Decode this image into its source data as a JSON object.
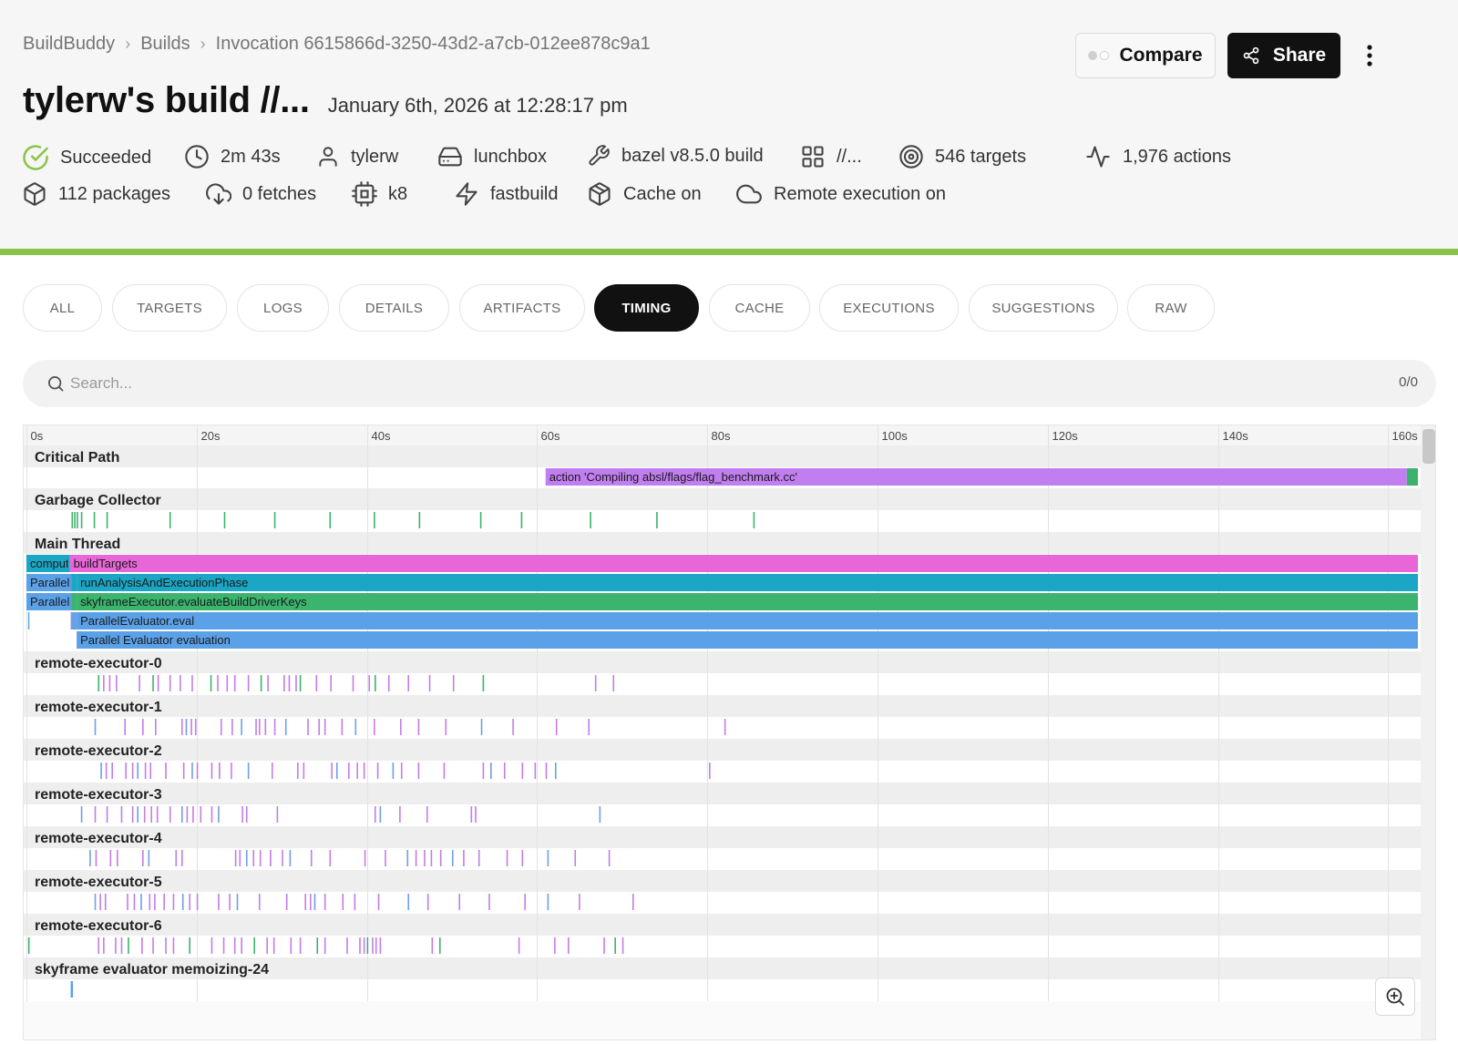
{
  "breadcrumb": [
    "BuildBuddy",
    "Builds",
    "Invocation 6615866d-3250-43d2-a7cb-012ee878c9a1"
  ],
  "title": "tylerw's build //...",
  "subtitle": "January 6th, 2026 at 12:28:17 pm",
  "actions": {
    "compare": "Compare",
    "share": "Share"
  },
  "stats": [
    {
      "icon": "check-circle-icon",
      "text": "Succeeded"
    },
    {
      "icon": "clock-icon",
      "text": "2m 43s"
    },
    {
      "icon": "user-icon",
      "text": "tylerw"
    },
    {
      "icon": "hard-drive-icon",
      "text": "lunchbox"
    },
    {
      "icon": "wrench-icon",
      "text": "bazel v8.5.0 build"
    },
    {
      "icon": "grid-icon",
      "text": "//..."
    },
    {
      "icon": "target-icon",
      "text": "546 targets"
    },
    {
      "icon": "activity-icon",
      "text": "1,976 actions"
    },
    {
      "icon": "box-icon",
      "text": "112 packages"
    },
    {
      "icon": "cloud-download-icon",
      "text": "0 fetches"
    },
    {
      "icon": "cpu-icon",
      "text": "k8"
    },
    {
      "icon": "zap-icon",
      "text": "fastbuild"
    },
    {
      "icon": "package-icon",
      "text": "Cache on"
    },
    {
      "icon": "cloud-icon",
      "text": "Remote execution on"
    }
  ],
  "tabs": [
    "ALL",
    "TARGETS",
    "LOGS",
    "DETAILS",
    "ARTIFACTS",
    "TIMING",
    "CACHE",
    "EXECUTIONS",
    "SUGGESTIONS",
    "RAW"
  ],
  "active_tab": "TIMING",
  "search": {
    "placeholder": "Search...",
    "count": "0/0"
  },
  "colors": {
    "success": "#8bc34a",
    "critical_path": "#c17ef0",
    "gc": "#3cb36c",
    "build_targets": "#e866d8",
    "analysis": "#1aa6c4",
    "evaluate_keys": "#3bb46e",
    "evaluator": "#5ba1e8",
    "executor_purple": "#c57be8",
    "executor_blue": "#6d9fe8",
    "executor_green": "#3cb36c"
  },
  "timeline": {
    "x_max_seconds": 163.5,
    "axis_ticks": [
      {
        "t": 0,
        "label": "0s"
      },
      {
        "t": 20,
        "label": "20s"
      },
      {
        "t": 40,
        "label": "40s"
      },
      {
        "t": 60,
        "label": "60s"
      },
      {
        "t": 80,
        "label": "80s"
      },
      {
        "t": 100,
        "label": "100s"
      },
      {
        "t": 120,
        "label": "120s"
      },
      {
        "t": 140,
        "label": "140s"
      },
      {
        "t": 160,
        "label": "160s"
      }
    ],
    "sections": [
      {
        "name": "Critical Path",
        "rows": [
          [
            {
              "start": 61.0,
              "end": 162.2,
              "label": "action 'Compiling absl/flags/flag_benchmark.cc'",
              "color": "critical_path"
            },
            {
              "start": 162.2,
              "end": 163.5,
              "label": "",
              "color": "gc"
            }
          ]
        ]
      },
      {
        "name": "Garbage Collector",
        "ticks": {
          "color": "gc",
          "times": [
            5.3,
            5.6,
            5.9,
            6.4,
            7.9,
            9.4,
            16.8,
            23.2,
            29.1,
            35.6,
            40.8,
            46.1,
            53.3,
            58.1,
            66.2,
            74.0,
            85.4
          ]
        }
      },
      {
        "name": "Main Thread",
        "rows": [
          [
            {
              "start": 0,
              "end": 5.1,
              "label": "compute",
              "color": "analysis"
            },
            {
              "start": 5.1,
              "end": 163.5,
              "label": "buildTargets",
              "color": "build_targets"
            }
          ],
          [
            {
              "start": 0,
              "end": 5.3,
              "label": "ParallelEvaluator",
              "color": "evaluator"
            },
            {
              "start": 5.3,
              "end": 5.9,
              "label": "",
              "color": "analysis"
            },
            {
              "start": 5.9,
              "end": 163.5,
              "label": "runAnalysisAndExecutionPhase",
              "color": "analysis"
            }
          ],
          [
            {
              "start": 0,
              "end": 5.3,
              "label": "ParallelEvaluator",
              "color": "evaluator"
            },
            {
              "start": 5.3,
              "end": 5.9,
              "label": "",
              "color": "evaluate_keys"
            },
            {
              "start": 5.9,
              "end": 163.5,
              "label": "skyframeExecutor.evaluateBuildDriverKeys",
              "color": "evaluate_keys"
            }
          ],
          [
            {
              "start": 0.2,
              "end": 0.35,
              "label": "",
              "color": "evaluator"
            },
            {
              "start": 5.2,
              "end": 5.9,
              "label": "",
              "color": "executor_blue"
            },
            {
              "start": 5.9,
              "end": 163.5,
              "label": "ParallelEvaluator.eval",
              "color": "evaluator"
            }
          ],
          [
            {
              "start": 5.9,
              "end": 163.5,
              "label": "Parallel Evaluator evaluation",
              "color": "evaluator"
            }
          ]
        ]
      },
      {
        "name": "remote-executor-0",
        "ticks": {
          "color": "executor_purple",
          "alt": "executor_green",
          "times": [
            8.4,
            9.0,
            9.7,
            10.5,
            13.2,
            14.8,
            15.4,
            16.8,
            18.0,
            19.4,
            21.6,
            22.4,
            23.5,
            24.4,
            26.0,
            27.5,
            28.3,
            30.2,
            30.8,
            31.6,
            32.1,
            34.0,
            35.7,
            38.3,
            40.2,
            40.9,
            42.5,
            44.8,
            47.3,
            50.1,
            53.6,
            66.8,
            68.9
          ]
        }
      },
      {
        "name": "remote-executor-1",
        "ticks": {
          "color": "executor_purple",
          "alt": "executor_blue",
          "times": [
            8.0,
            11.5,
            13.6,
            15.1,
            18.2,
            18.7,
            19.3,
            19.8,
            22.8,
            24.1,
            25.2,
            26.9,
            27.3,
            28.0,
            29.1,
            30.4,
            33.0,
            34.3,
            35.0,
            37.0,
            38.6,
            40.8,
            43.9,
            46.0,
            49.2,
            53.4,
            57.1,
            62.2,
            66.0,
            82.0
          ]
        }
      },
      {
        "name": "remote-executor-2",
        "ticks": {
          "color": "executor_purple",
          "alt": "executor_blue",
          "times": [
            8.7,
            9.3,
            10.0,
            11.6,
            12.4,
            13.0,
            13.9,
            14.5,
            16.3,
            18.4,
            19.4,
            20.0,
            21.7,
            22.6,
            24.0,
            26.0,
            28.8,
            31.8,
            32.5,
            35.8,
            36.4,
            37.8,
            38.8,
            39.6,
            41.2,
            43.0,
            44.0,
            46.0,
            49.0,
            53.6,
            54.5,
            56.1,
            58.2,
            59.7,
            61.0,
            62.1,
            80.2
          ]
        }
      },
      {
        "name": "remote-executor-3",
        "ticks": {
          "color": "executor_purple",
          "alt": "executor_blue",
          "times": [
            6.4,
            8.0,
            9.4,
            11.1,
            12.4,
            13.0,
            13.8,
            14.6,
            15.3,
            16.8,
            18.2,
            18.8,
            19.5,
            20.4,
            21.7,
            22.5,
            25.3,
            25.8,
            29.4,
            40.9,
            41.5,
            43.8,
            47.0,
            52.2,
            52.7,
            67.3
          ]
        }
      },
      {
        "name": "remote-executor-4",
        "ticks": {
          "color": "executor_purple",
          "alt": "executor_blue",
          "times": [
            7.4,
            8.1,
            9.8,
            10.6,
            13.6,
            14.3,
            17.5,
            18.2,
            24.5,
            25.0,
            25.8,
            26.6,
            27.4,
            28.6,
            30.0,
            30.9,
            33.4,
            35.6,
            39.7,
            42.1,
            44.7,
            45.7,
            46.7,
            47.5,
            48.6,
            50.0,
            51.3,
            53.1,
            56.4,
            58.2,
            61.2,
            64.4,
            68.4
          ]
        }
      },
      {
        "name": "remote-executor-5",
        "ticks": {
          "color": "executor_purple",
          "alt": "executor_blue",
          "times": [
            8.0,
            8.6,
            9.2,
            11.8,
            12.6,
            13.4,
            14.4,
            15.0,
            16.1,
            17.2,
            18.3,
            19.1,
            20.0,
            22.5,
            23.8,
            24.7,
            27.3,
            30.5,
            32.7,
            33.3,
            33.8,
            35.0,
            37.1,
            38.5,
            41.3,
            44.8,
            47.1,
            50.8,
            54.3,
            58.5,
            61.2,
            64.9,
            71.2
          ]
        }
      },
      {
        "name": "remote-executor-6",
        "ticks": {
          "color": "executor_purple",
          "alt": "executor_green",
          "times": [
            0.2,
            8.4,
            9.0,
            10.4,
            11.1,
            11.9,
            13.5,
            14.8,
            16.3,
            17.2,
            19.1,
            21.7,
            23.1,
            24.4,
            25.2,
            26.7,
            28.2,
            29.0,
            31.0,
            32.1,
            34.1,
            35.0,
            37.6,
            39.1,
            39.6,
            40.0,
            40.6,
            41.0,
            41.5,
            47.6,
            48.5,
            57.8,
            62.0,
            63.6,
            67.8,
            69.1,
            70.0
          ]
        }
      },
      {
        "name": "skyframe evaluator memoizing-24",
        "ticks": {
          "color": "evaluator",
          "times": [
            5.2,
            5.3
          ]
        }
      }
    ]
  }
}
